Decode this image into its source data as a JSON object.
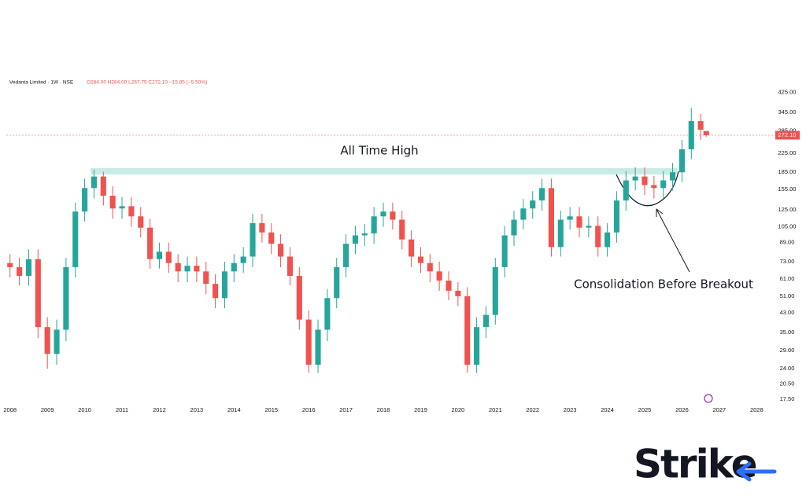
{
  "chart_data": {
    "type": "candlestick",
    "header": "Vedanta Limited · 1W · NSE",
    "ohlc_text": "O284.00 H284.00 L267.75 C272.10 −15.85 (−5.50%)",
    "annotations": [
      "All Time High",
      "Consolidation Before Breakout"
    ],
    "brand": "Strike",
    "log_scale": true,
    "grid": false,
    "up_color": "#26a69a",
    "down_color": "#ef5350",
    "xlim": [
      2007.9,
      2028.5
    ],
    "ylim": [
      16.5,
      490
    ],
    "xticks": [
      2008,
      2009,
      2010,
      2011,
      2012,
      2013,
      2014,
      2015,
      2016,
      2017,
      2018,
      2019,
      2020,
      2021,
      2022,
      2023,
      2024,
      2025,
      2026,
      2027,
      2028
    ],
    "yticks": [
      {
        "value": 17.5,
        "label": "17.50"
      },
      {
        "value": 20.5,
        "label": "20.50"
      },
      {
        "value": 24,
        "label": "24.00"
      },
      {
        "value": 29,
        "label": "29.00"
      },
      {
        "value": 35,
        "label": "35.00"
      },
      {
        "value": 43,
        "label": "43.00"
      },
      {
        "value": 51,
        "label": "51.00"
      },
      {
        "value": 61,
        "label": "61.00"
      },
      {
        "value": 73,
        "label": "73.00"
      },
      {
        "value": 89,
        "label": "89.00"
      },
      {
        "value": 105,
        "label": "105.00"
      },
      {
        "value": 125,
        "label": "125.00"
      },
      {
        "value": 155,
        "label": "155.00"
      },
      {
        "value": 185,
        "label": "185.00"
      },
      {
        "value": 225,
        "label": "225.00"
      },
      {
        "value": 285,
        "label": "285.00"
      },
      {
        "value": 345,
        "label": "345.00"
      },
      {
        "value": 425,
        "label": "425.00"
      }
    ],
    "last_price": {
      "value": 272.1,
      "label": "272.10"
    },
    "x": [
      2008.0,
      2008.25,
      2008.5,
      2008.75,
      2009.0,
      2009.25,
      2009.5,
      2009.75,
      2010.0,
      2010.25,
      2010.5,
      2010.75,
      2011.0,
      2011.25,
      2011.5,
      2011.75,
      2012.0,
      2012.25,
      2012.5,
      2012.75,
      2013.0,
      2013.25,
      2013.5,
      2013.75,
      2014.0,
      2014.25,
      2014.5,
      2014.75,
      2015.0,
      2015.25,
      2015.5,
      2015.75,
      2016.0,
      2016.25,
      2016.5,
      2016.75,
      2017.0,
      2017.25,
      2017.5,
      2017.75,
      2018.0,
      2018.25,
      2018.5,
      2018.75,
      2019.0,
      2019.25,
      2019.5,
      2019.75,
      2020.0,
      2020.25,
      2020.5,
      2020.75,
      2021.0,
      2021.25,
      2021.5,
      2021.75,
      2022.0,
      2022.25,
      2022.5,
      2022.75,
      2023.0,
      2023.25,
      2023.5,
      2023.75,
      2024.0,
      2024.25,
      2024.5,
      2024.75,
      2025.0,
      2025.25,
      2025.5,
      2025.75,
      2026.0,
      2026.25,
      2026.5,
      2026.65
    ],
    "open": [
      72,
      69,
      63,
      75,
      37,
      28,
      36,
      69,
      123,
      157,
      177,
      145,
      127,
      130,
      117,
      104,
      75,
      81,
      72,
      66,
      70,
      66,
      58,
      50,
      66,
      72,
      77,
      109,
      99,
      88,
      77,
      63,
      40,
      25,
      36,
      50,
      69,
      88,
      96,
      98,
      117,
      123,
      113,
      92,
      77,
      72,
      66,
      60,
      54,
      51,
      25,
      37,
      42,
      69,
      96,
      113,
      127,
      138,
      157,
      85,
      113,
      117,
      104,
      106,
      85,
      99,
      138,
      170,
      177,
      162,
      157,
      170,
      185,
      235,
      315,
      284
    ],
    "high": [
      79,
      76,
      83,
      83,
      41,
      40,
      76,
      135,
      173,
      190,
      186,
      160,
      143,
      143,
      129,
      114,
      89,
      89,
      79,
      77,
      77,
      73,
      64,
      73,
      79,
      85,
      120,
      120,
      109,
      97,
      85,
      69,
      44,
      40,
      55,
      76,
      97,
      106,
      108,
      129,
      135,
      135,
      124,
      101,
      85,
      79,
      73,
      66,
      59,
      56,
      41,
      46,
      76,
      106,
      124,
      140,
      152,
      173,
      173,
      124,
      129,
      129,
      117,
      117,
      109,
      152,
      187,
      195,
      195,
      178,
      187,
      204,
      259,
      361,
      340,
      284
    ],
    "low": [
      62,
      57,
      57,
      33,
      24,
      25,
      32,
      62,
      111,
      141,
      131,
      114,
      114,
      105,
      94,
      68,
      68,
      65,
      59,
      59,
      59,
      52,
      45,
      45,
      59,
      65,
      69,
      89,
      79,
      69,
      57,
      36,
      23,
      23,
      32,
      45,
      62,
      79,
      86,
      88,
      105,
      102,
      83,
      69,
      65,
      59,
      54,
      49,
      46,
      23,
      23,
      33,
      38,
      62,
      86,
      102,
      114,
      124,
      77,
      77,
      102,
      94,
      94,
      77,
      77,
      89,
      124,
      153,
      146,
      141,
      141,
      153,
      167,
      212,
      259,
      267.75
    ],
    "close": [
      69,
      63,
      75,
      37,
      28,
      36,
      69,
      123,
      157,
      177,
      145,
      127,
      130,
      117,
      104,
      75,
      81,
      72,
      66,
      70,
      66,
      58,
      50,
      66,
      72,
      77,
      109,
      99,
      88,
      77,
      63,
      40,
      25,
      36,
      50,
      69,
      88,
      96,
      98,
      117,
      123,
      113,
      92,
      77,
      72,
      66,
      60,
      54,
      51,
      25,
      37,
      42,
      69,
      96,
      113,
      127,
      138,
      157,
      85,
      113,
      117,
      104,
      106,
      85,
      99,
      138,
      170,
      177,
      162,
      157,
      170,
      185,
      235,
      315,
      288,
      272.1
    ]
  }
}
